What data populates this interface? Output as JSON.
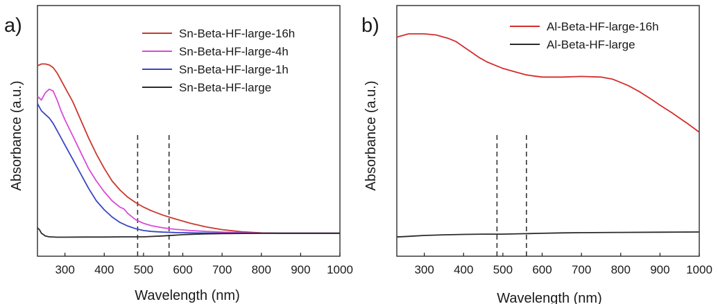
{
  "chart_data": [
    {
      "panel_label": "a)",
      "type": "line",
      "xlabel": "Wavelength (nm)",
      "ylabel": "Absorbance (a.u.)",
      "xlim": [
        230,
        1000
      ],
      "xticks": [
        300,
        400,
        500,
        600,
        700,
        800,
        900,
        1000
      ],
      "ylim": [
        0,
        1
      ],
      "yticks_shown": false,
      "grid": false,
      "legend_position": "top-right",
      "vlines": [
        485,
        565
      ],
      "series": [
        {
          "name": "Sn-Beta-HF-large-16h",
          "color": "#c8372d",
          "x": [
            230,
            240,
            250,
            260,
            270,
            280,
            290,
            300,
            320,
            340,
            360,
            380,
            400,
            420,
            440,
            460,
            480,
            500,
            520,
            550,
            580,
            620,
            660,
            700,
            750,
            800,
            850,
            900,
            950,
            1000
          ],
          "y": [
            0.95,
            0.96,
            0.96,
            0.955,
            0.94,
            0.91,
            0.87,
            0.83,
            0.75,
            0.65,
            0.55,
            0.46,
            0.38,
            0.31,
            0.26,
            0.22,
            0.19,
            0.165,
            0.145,
            0.12,
            0.1,
            0.075,
            0.055,
            0.04,
            0.028,
            0.022,
            0.02,
            0.02,
            0.02,
            0.02
          ]
        },
        {
          "name": "Sn-Beta-HF-large-4h",
          "color": "#d84ad6",
          "x": [
            230,
            240,
            250,
            260,
            270,
            280,
            290,
            300,
            320,
            340,
            360,
            380,
            400,
            420,
            440,
            450,
            460,
            480,
            500,
            520,
            550,
            580,
            620,
            660,
            700,
            750,
            800,
            850,
            900,
            1000
          ],
          "y": [
            0.78,
            0.76,
            0.8,
            0.82,
            0.81,
            0.76,
            0.7,
            0.65,
            0.56,
            0.47,
            0.38,
            0.31,
            0.25,
            0.2,
            0.165,
            0.155,
            0.13,
            0.095,
            0.075,
            0.062,
            0.05,
            0.042,
            0.035,
            0.03,
            0.026,
            0.023,
            0.021,
            0.02,
            0.02,
            0.02
          ]
        },
        {
          "name": "Sn-Beta-HF-large-1h",
          "color": "#3a44c4",
          "x": [
            230,
            240,
            250,
            260,
            270,
            280,
            290,
            300,
            320,
            340,
            360,
            380,
            400,
            420,
            440,
            460,
            480,
            500,
            520,
            550,
            580,
            620,
            660,
            700,
            750,
            800,
            850,
            900,
            1000
          ],
          "y": [
            0.74,
            0.7,
            0.68,
            0.66,
            0.63,
            0.59,
            0.55,
            0.51,
            0.43,
            0.35,
            0.27,
            0.2,
            0.15,
            0.11,
            0.08,
            0.06,
            0.045,
            0.035,
            0.03,
            0.026,
            0.024,
            0.022,
            0.021,
            0.02,
            0.02,
            0.02,
            0.02,
            0.02,
            0.02
          ]
        },
        {
          "name": "Sn-Beta-HF-large",
          "color": "#2a2a2a",
          "x": [
            230,
            235,
            240,
            250,
            260,
            280,
            300,
            350,
            400,
            450,
            500,
            550,
            600,
            650,
            700,
            750,
            800,
            850,
            900,
            1000
          ],
          "y": [
            0.05,
            0.04,
            0.02,
            0.005,
            0.0,
            -0.002,
            -0.002,
            -0.001,
            -0.001,
            0.0,
            0.0,
            0.005,
            0.012,
            0.016,
            0.018,
            0.019,
            0.02,
            0.02,
            0.02,
            0.02
          ]
        }
      ]
    },
    {
      "panel_label": "b)",
      "type": "line",
      "xlabel": "Wavelength (nm)",
      "ylabel": "Absorbance (a.u.)",
      "xlim": [
        230,
        1000
      ],
      "xticks": [
        300,
        400,
        500,
        600,
        700,
        800,
        900,
        1000
      ],
      "ylim": [
        0,
        1
      ],
      "yticks_shown": false,
      "grid": false,
      "legend_position": "top-right",
      "vlines": [
        485,
        560
      ],
      "series": [
        {
          "name": "Al-Beta-HF-large-16h",
          "color": "#d42c2c",
          "x": [
            230,
            260,
            300,
            330,
            360,
            380,
            400,
            420,
            440,
            460,
            480,
            500,
            520,
            540,
            560,
            580,
            600,
            650,
            700,
            750,
            780,
            800,
            820,
            850,
            880,
            900,
            930,
            950,
            970,
            1000
          ],
          "y": [
            0.95,
            0.965,
            0.965,
            0.96,
            0.945,
            0.93,
            0.905,
            0.88,
            0.855,
            0.835,
            0.82,
            0.805,
            0.795,
            0.785,
            0.775,
            0.77,
            0.765,
            0.765,
            0.768,
            0.765,
            0.755,
            0.74,
            0.725,
            0.695,
            0.66,
            0.635,
            0.6,
            0.575,
            0.55,
            0.51
          ]
        },
        {
          "name": "Al-Beta-HF-large",
          "color": "#2a2a2a",
          "x": [
            230,
            260,
            300,
            350,
            400,
            450,
            500,
            550,
            600,
            650,
            700,
            800,
            900,
            1000
          ],
          "y": [
            0.025,
            0.028,
            0.032,
            0.035,
            0.037,
            0.038,
            0.038,
            0.04,
            0.042,
            0.044,
            0.045,
            0.046,
            0.047,
            0.048
          ]
        }
      ]
    }
  ]
}
